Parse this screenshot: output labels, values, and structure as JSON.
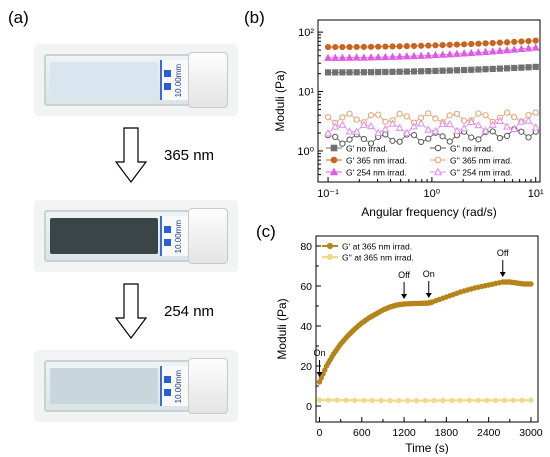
{
  "labels": {
    "a": "(a)",
    "b": "(b)",
    "c": "(c)"
  },
  "arrows": {
    "first": "365 nm",
    "second": "254 nm"
  },
  "photos": [
    {
      "tint": "#d9e6f0",
      "text": "10.00mm"
    },
    {
      "tint": "#3b4548",
      "text": "10.00mm"
    },
    {
      "tint": "#c9d6dc",
      "text": "10.00mm"
    }
  ],
  "chart_data": [
    {
      "type": "scatter",
      "xlabel": "Angular frequency (rad/s)",
      "ylabel": "Moduli (Pa)",
      "xscale": "log",
      "yscale": "log",
      "xlim": [
        0.08,
        11
      ],
      "ylim": [
        0.3,
        160
      ],
      "x_ticks": [
        "10⁻¹",
        "10⁰",
        "10¹"
      ],
      "y_ticks": [
        "10⁰",
        "10¹",
        "10²"
      ],
      "series": [
        {
          "name": "G' no irrad.",
          "color": "#707070",
          "marker": "square",
          "filled": true,
          "x_start": 0.1,
          "x_end": 10,
          "y_start": 21,
          "y_end": 26
        },
        {
          "name": "G'' no irrad.",
          "color": "#555555",
          "marker": "circle",
          "filled": false,
          "x_start": 0.1,
          "x_end": 10,
          "y_start": 1.6,
          "y_end": 2.1
        },
        {
          "name": "G' 365 nm irrad.",
          "color": "#c8641e",
          "marker": "circle",
          "filled": true,
          "x_start": 0.1,
          "x_end": 10,
          "y_start": 56,
          "y_end": 72
        },
        {
          "name": "G'' 365 nm irrad.",
          "color": "#e0a070",
          "marker": "circle",
          "filled": false,
          "x_start": 0.1,
          "x_end": 10,
          "y_start": 3.6,
          "y_end": 3.8
        },
        {
          "name": "G' 254 nm irrad.",
          "color": "#e05ae8",
          "marker": "triangle",
          "filled": true,
          "x_start": 0.1,
          "x_end": 10,
          "y_start": 37,
          "y_end": 55
        },
        {
          "name": "G'' 254 nm irrad.",
          "color": "#e08ee8",
          "marker": "triangle",
          "filled": false,
          "x_start": 0.1,
          "x_end": 10,
          "y_start": 2.4,
          "y_end": 2.9
        }
      ]
    },
    {
      "type": "line",
      "xlabel": "Time (s)",
      "ylabel": "Moduli (Pa)",
      "xlim": [
        -50,
        3100
      ],
      "ylim": [
        -8,
        85
      ],
      "x_ticks": [
        0,
        600,
        1200,
        1800,
        2400,
        3000
      ],
      "y_ticks": [
        0,
        20,
        40,
        60,
        80
      ],
      "series": [
        {
          "name": "G' at 365 nm irrad.",
          "color": "#b5841a",
          "x": [
            0,
            100,
            200,
            300,
            400,
            500,
            600,
            700,
            800,
            900,
            1000,
            1100,
            1200,
            1300,
            1400,
            1500,
            1550,
            1600,
            1800,
            2000,
            2200,
            2400,
            2600,
            2700,
            2800,
            2900,
            3000
          ],
          "y": [
            12,
            20,
            26,
            31,
            35,
            38.5,
            41.5,
            44,
            46,
            48,
            49.5,
            50.5,
            51,
            51.2,
            51.3,
            51.4,
            51.5,
            52,
            54.5,
            57,
            59,
            60.5,
            62,
            62,
            61.5,
            61,
            61
          ]
        },
        {
          "name": "G'' at 365 nm irrad.",
          "color": "#f2d98a",
          "x": [
            0,
            500,
            1000,
            1500,
            2000,
            2500,
            3000
          ],
          "y": [
            3,
            2.8,
            2.7,
            2.7,
            2.8,
            2.8,
            2.9
          ]
        }
      ],
      "annotations": [
        {
          "text": "On",
          "x": 0,
          "y": 12
        },
        {
          "text": "Off",
          "x": 1200,
          "y": 51
        },
        {
          "text": "On",
          "x": 1550,
          "y": 51.5
        },
        {
          "text": "Off",
          "x": 2600,
          "y": 62
        }
      ]
    }
  ]
}
